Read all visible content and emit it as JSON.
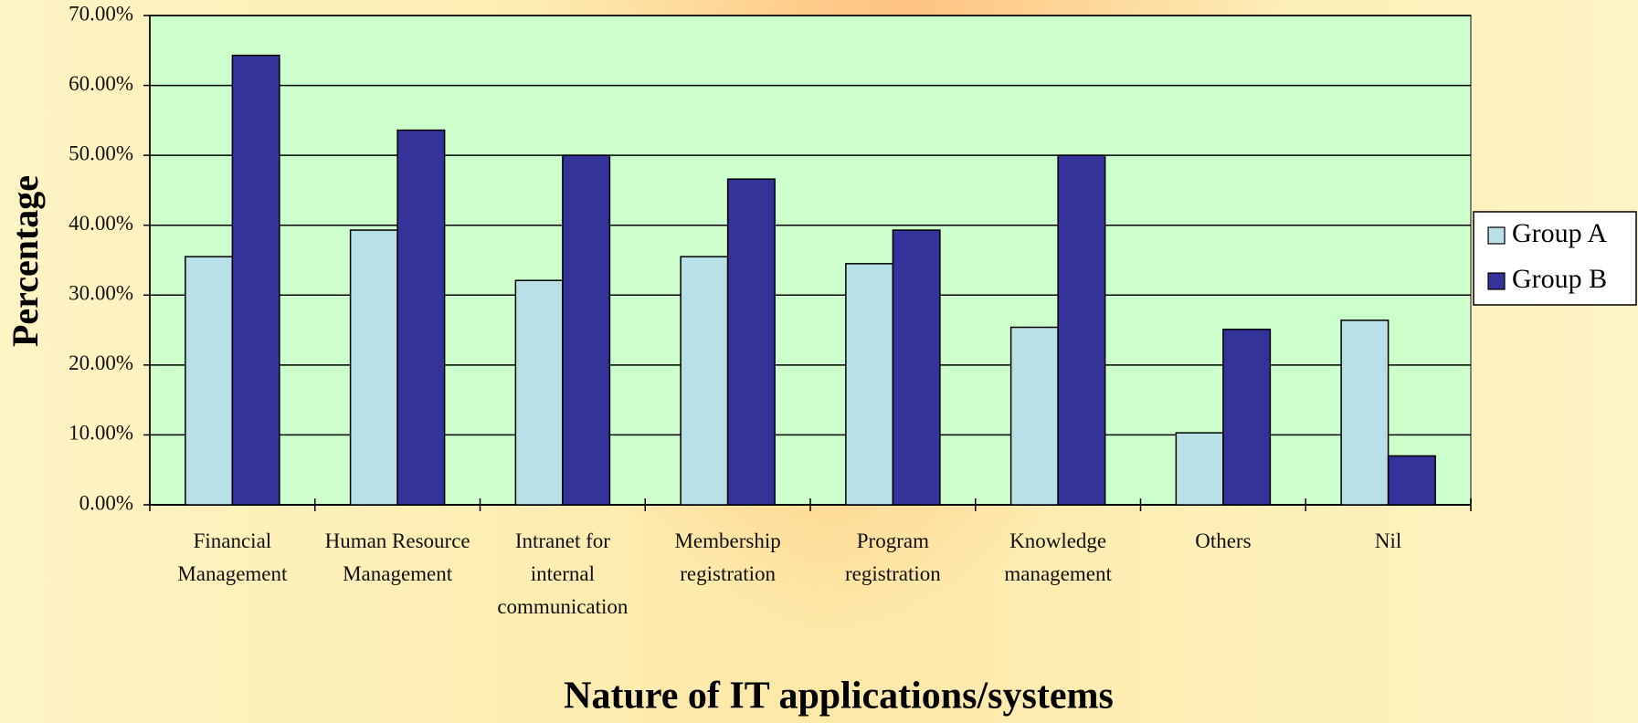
{
  "chart_data": {
    "type": "bar",
    "x_label": "Nature of IT applications/systems",
    "y_label": "Percentage",
    "categories": [
      "Financial\nManagement",
      "Human Resource\nManagement",
      "Intranet for\ninternal\ncommunication",
      "Membership\nregistration",
      "Program\nregistration",
      "Knowledge\nmanagement",
      "Others",
      "Nil"
    ],
    "series": [
      {
        "name": "Group A",
        "color": "#b9e0e6",
        "values": [
          35.5,
          39.3,
          32.1,
          35.5,
          34.5,
          25.4,
          10.3,
          26.4
        ]
      },
      {
        "name": "Group B",
        "color": "#333399",
        "values": [
          64.3,
          53.6,
          50,
          46.6,
          39.3,
          50,
          25.1,
          7
        ]
      }
    ],
    "ylim": [
      0,
      70
    ],
    "yticks": [
      {
        "value": 0,
        "label": "0.00%"
      },
      {
        "value": 10,
        "label": "10.00%"
      },
      {
        "value": 20,
        "label": "20.00%"
      },
      {
        "value": 30,
        "label": "30.00%"
      },
      {
        "value": 40,
        "label": "40.00%"
      },
      {
        "value": 50,
        "label": "50.00%"
      },
      {
        "value": 60,
        "label": "60.00%"
      },
      {
        "value": 70,
        "label": "70.00%"
      }
    ],
    "grid": true,
    "legend": "right",
    "plot_background": "#ccffcc"
  }
}
